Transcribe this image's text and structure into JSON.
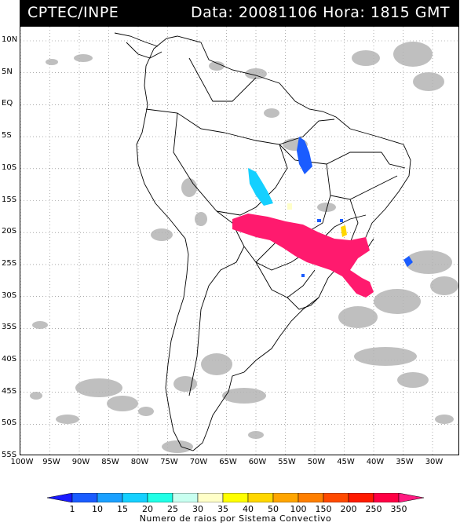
{
  "header": {
    "source": "CPTEC/INPE",
    "timestamp": "Data: 20081106 Hora: 1815 GMT"
  },
  "map": {
    "lat_labels": [
      "10N",
      "5N",
      "EQ",
      "5S",
      "10S",
      "15S",
      "20S",
      "25S",
      "30S",
      "35S",
      "40S",
      "45S",
      "50S",
      "55S"
    ],
    "lon_labels": [
      "100W",
      "95W",
      "90W",
      "85W",
      "80W",
      "75W",
      "70W",
      "65W",
      "60W",
      "55W",
      "50W",
      "45W",
      "40W",
      "35W",
      "30W"
    ]
  },
  "legend": {
    "ticks": [
      "1",
      "10",
      "15",
      "20",
      "25",
      "30",
      "35",
      "40",
      "50",
      "100",
      "150",
      "200",
      "250",
      "350"
    ],
    "colors": [
      "#1a1aff",
      "#1a5cff",
      "#1aa0ff",
      "#15d0ff",
      "#20ffe6",
      "#c8fff0",
      "#ffffc8",
      "#ffff00",
      "#ffd700",
      "#ffa500",
      "#ff7f00",
      "#ff4a00",
      "#ff1a00",
      "#ff0044",
      "#ff1a80"
    ],
    "caption": "Numero de raios por Sistema Convectivo"
  },
  "storms": [
    {
      "name": "southeast-brazil-lightning-cluster",
      "level": "350"
    },
    {
      "name": "central-brazil-cluster",
      "level": "25"
    },
    {
      "name": "para-cluster",
      "level": "10"
    },
    {
      "name": "atlantic-cluster",
      "level": "10"
    },
    {
      "name": "minas-gerais-cluster",
      "level": "50"
    }
  ]
}
